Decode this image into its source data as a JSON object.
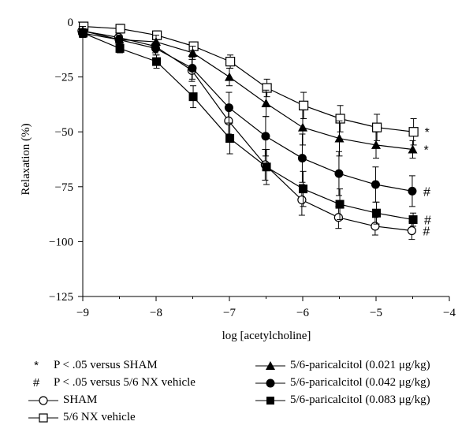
{
  "chart_data": {
    "type": "line",
    "xlabel": "log [acetylcholine]",
    "ylabel": "Relaxation (%)",
    "xlim": [
      -9,
      -4
    ],
    "ylim": [
      -125,
      0
    ],
    "xticks": [
      "−9",
      "−8",
      "−7",
      "−6",
      "−5",
      "−4"
    ],
    "yticks": [
      "0",
      "−25",
      "−50",
      "−75",
      "−100",
      "−125"
    ],
    "x": [
      -9,
      -8.5,
      -8,
      -7.5,
      -7,
      -6.5,
      -6,
      -5.5,
      -5,
      -4.5
    ],
    "series": [
      {
        "name": "SHAM",
        "marker": "circle-open",
        "values": [
          -4,
          -7,
          -11,
          -22,
          -45,
          -65,
          -81,
          -89,
          -93,
          -95
        ],
        "errors": [
          2,
          2,
          3,
          5,
          6,
          7,
          7,
          5,
          4,
          4
        ],
        "significance": "#"
      },
      {
        "name": "5/6 NX vehicle",
        "marker": "square-open",
        "values": [
          -2,
          -3,
          -6,
          -11,
          -18,
          -30,
          -38,
          -44,
          -48,
          -50
        ],
        "errors": [
          1,
          2,
          2,
          2,
          3,
          4,
          6,
          6,
          6,
          6
        ],
        "significance": "*"
      },
      {
        "name": "5/6-paricalcitol (0.021 μg/kg)",
        "marker": "triangle-filled",
        "values": [
          -4,
          -8,
          -9,
          -14,
          -25,
          -37,
          -48,
          -53,
          -56,
          -58
        ],
        "errors": [
          2,
          2,
          3,
          3,
          4,
          6,
          8,
          8,
          6,
          4
        ],
        "significance": "*"
      },
      {
        "name": "5/6-paricalcitol (0.042 μg/kg)",
        "marker": "circle-filled",
        "values": [
          -5,
          -8,
          -12,
          -21,
          -39,
          -52,
          -62,
          -69,
          -74,
          -77
        ],
        "errors": [
          2,
          2,
          3,
          5,
          7,
          9,
          11,
          10,
          8,
          7
        ],
        "significance": "#"
      },
      {
        "name": "5/6-paricalcitol (0.083 μg/kg)",
        "marker": "square-filled",
        "values": [
          -5,
          -12,
          -18,
          -34,
          -53,
          -66,
          -76,
          -83,
          -87,
          -90
        ],
        "errors": [
          2,
          2,
          3,
          5,
          7,
          8,
          8,
          7,
          5,
          3
        ],
        "significance": "#"
      }
    ],
    "legend": [
      {
        "symbol": "*",
        "text": "P < .05 versus SHAM"
      },
      {
        "symbol": "#",
        "text": "P < .05 versus 5/6 NX vehicle"
      }
    ]
  }
}
